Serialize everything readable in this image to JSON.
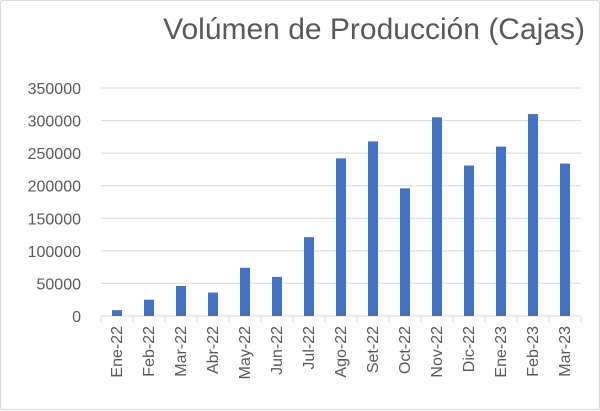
{
  "chart_data": {
    "type": "bar",
    "title": "Volúmen de Producción (Cajas)",
    "categories": [
      "Ene-22",
      "Feb-22",
      "Mar-22",
      "Abr-22",
      "May-22",
      "Jun-22",
      "Jul-22",
      "Ago-22",
      "Set-22",
      "Oct-22",
      "Nov-22",
      "Dic-22",
      "Ene-23",
      "Feb-23",
      "Mar-23"
    ],
    "values": [
      9000,
      25000,
      46000,
      36000,
      74000,
      60000,
      121000,
      242000,
      268000,
      196000,
      305000,
      231000,
      260000,
      310000,
      234000
    ],
    "ylim": [
      0,
      350000
    ],
    "yticks": [
      "0",
      "50000",
      "100000",
      "150000",
      "200000",
      "250000",
      "300000",
      "350000"
    ],
    "grid": true,
    "legend": "none",
    "colors": {
      "bar": "#4472C4",
      "grid": "#d9d9d9",
      "text": "#595959"
    }
  }
}
